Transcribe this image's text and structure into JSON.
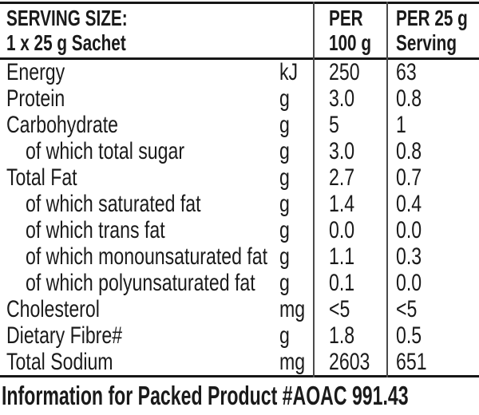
{
  "table": {
    "header": {
      "serving_size_line1": "SERVING SIZE:",
      "serving_size_line2": "1 x 25 g Sachet",
      "per100_line1": "PER",
      "per100_line2": "100 g",
      "per25_line1": "PER 25 g",
      "per25_line2": "Serving"
    },
    "rows": [
      {
        "label": "Energy",
        "indent": false,
        "unit": "kJ",
        "per100": "250",
        "per25": "63"
      },
      {
        "label": "Protein",
        "indent": false,
        "unit": "g",
        "per100": "3.0",
        "per25": "0.8"
      },
      {
        "label": "Carbohydrate",
        "indent": false,
        "unit": "g",
        "per100": "5",
        "per25": "1"
      },
      {
        "label": "of which total sugar",
        "indent": true,
        "unit": "g",
        "per100": "3.0",
        "per25": "0.8"
      },
      {
        "label": "Total Fat",
        "indent": false,
        "unit": "g",
        "per100": "2.7",
        "per25": "0.7"
      },
      {
        "label": "of which saturated fat",
        "indent": true,
        "unit": "g",
        "per100": "1.4",
        "per25": "0.4"
      },
      {
        "label": "of which trans fat",
        "indent": true,
        "unit": "g",
        "per100": "0.0",
        "per25": "0.0"
      },
      {
        "label": "of which monounsaturated fat",
        "indent": true,
        "unit": "g",
        "per100": "1.1",
        "per25": "0.3"
      },
      {
        "label": "of which polyunsaturated fat",
        "indent": true,
        "unit": "g",
        "per100": "0.1",
        "per25": "0.0"
      },
      {
        "label": "Cholesterol",
        "indent": false,
        "unit": "mg",
        "per100": "<5",
        "per25": "<5"
      },
      {
        "label": "Dietary Fibre#",
        "indent": false,
        "unit": "g",
        "per100": "1.8",
        "per25": "0.5"
      },
      {
        "label": "Total Sodium",
        "indent": false,
        "unit": "mg",
        "per100": "2603",
        "per25": "651"
      }
    ]
  },
  "footer": {
    "note": "Information for Packed Product #AOAC 991.43"
  },
  "colors": {
    "text": "#1a1a1a",
    "rule": "#161616",
    "divider": "#4a4a4a",
    "background": "#ffffff"
  }
}
